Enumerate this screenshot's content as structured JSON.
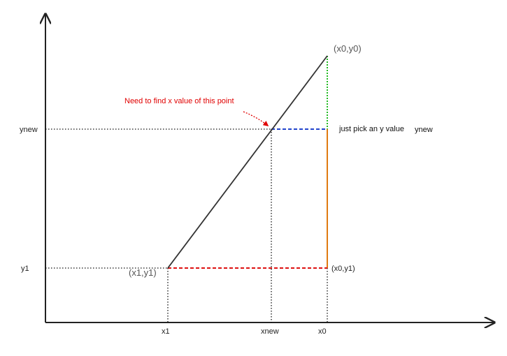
{
  "labels": {
    "ynew_axis": "ynew",
    "y1_axis": "y1",
    "x1_axis": "x1",
    "xnew_axis": "xnew",
    "x0_axis": "x0",
    "point_x0y0": "(x0,y0)",
    "point_x1y1": "(x1,y1)",
    "point_x0y1": "(x0,y1)",
    "pick_note": "just pick an y value",
    "pick_ynew": "ynew",
    "find_note": "Need to find x value of this point"
  },
  "colors": {
    "axis": "#222222",
    "line": "#333333",
    "guide": "#111111",
    "green": "#22bb22",
    "blue": "#2244cc",
    "red": "#dd1111",
    "orange": "#e07a10",
    "note": "#e00000"
  }
}
